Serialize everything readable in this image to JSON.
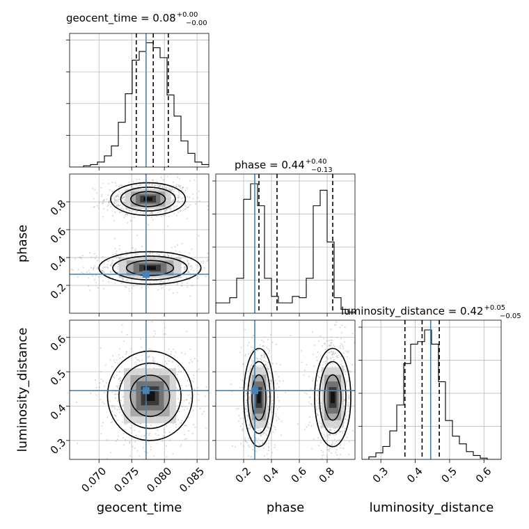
{
  "chart_data": {
    "type": "corner",
    "parameters": [
      "geocent_time",
      "phase",
      "luminosity_distance"
    ],
    "truth": {
      "geocent_time": 0.0772,
      "phase": 0.28,
      "luminosity_distance": 0.445
    },
    "ranges": {
      "geocent_time": [
        0.0655,
        0.0868
      ],
      "phase": [
        0.0,
        1.0
      ],
      "luminosity_distance": [
        0.245,
        0.65
      ]
    },
    "quantiles": {
      "geocent_time": [
        0.0757,
        0.0783,
        0.0806
      ],
      "phase": [
        0.31,
        0.44,
        0.84
      ],
      "luminosity_distance": [
        0.37,
        0.42,
        0.47
      ]
    },
    "titles": [
      {
        "prefix": "geocent_time = 0.08",
        "plus": "+0.00",
        "minus": "−0.00"
      },
      {
        "prefix": "phase = 0.44",
        "plus": "+0.40",
        "minus": "−0.13"
      },
      {
        "prefix": "luminosity_distance = 0.42",
        "plus": "+0.05",
        "minus": "−0.05"
      }
    ],
    "axis_labels": {
      "x": [
        "geocent_time",
        "phase",
        "luminosity_distance"
      ],
      "y": [
        "phase",
        "luminosity_distance"
      ]
    },
    "ticks": {
      "geocent_time": [
        "0.070",
        "0.075",
        "0.080",
        "0.085"
      ],
      "phase": [
        "0.2",
        "0.4",
        "0.6",
        "0.8"
      ],
      "luminosity_distance": [
        "0.3",
        "0.4",
        "0.5",
        "0.6"
      ]
    },
    "histograms": {
      "geocent_time": [
        0.0,
        0.0,
        0.01,
        0.02,
        0.04,
        0.09,
        0.17,
        0.36,
        0.59,
        0.86,
        0.93,
        1.0,
        0.96,
        0.88,
        0.58,
        0.41,
        0.21,
        0.11,
        0.04,
        0.02
      ],
      "phase": [
        0.08,
        0.08,
        0.12,
        0.27,
        0.88,
        1.0,
        0.83,
        0.27,
        0.13,
        0.08,
        0.08,
        0.13,
        0.12,
        0.27,
        0.83,
        0.95,
        0.55,
        0.12,
        0.03,
        0.01
      ],
      "luminosity_distance": [
        0.0,
        0.02,
        0.05,
        0.1,
        0.22,
        0.42,
        0.74,
        0.89,
        0.91,
        1.0,
        0.89,
        0.6,
        0.3,
        0.18,
        0.12,
        0.06,
        0.03,
        0.01,
        0.0,
        0.0
      ]
    },
    "contour_clusters": {
      "phase_vs_geocent_time": [
        {
          "cx": 0.0775,
          "cy": 0.82,
          "sx": 0.0022,
          "sy": 0.045
        },
        {
          "cx": 0.0778,
          "cy": 0.325,
          "sx": 0.003,
          "sy": 0.045
        }
      ],
      "luminosity_distance_vs_geocent_time": [
        {
          "cx": 0.0778,
          "cy": 0.43,
          "sx": 0.0025,
          "sy": 0.05
        }
      ],
      "luminosity_distance_vs_phase": [
        {
          "cx": 0.31,
          "cy": 0.425,
          "sx": 0.042,
          "sy": 0.055
        },
        {
          "cx": 0.84,
          "cy": 0.425,
          "sx": 0.05,
          "sy": 0.055
        }
      ]
    },
    "grid": true,
    "colors": {
      "truth": "#4682b4",
      "lines": "#000000",
      "grid": "#b0b0b0",
      "scatter": "#999999"
    }
  }
}
